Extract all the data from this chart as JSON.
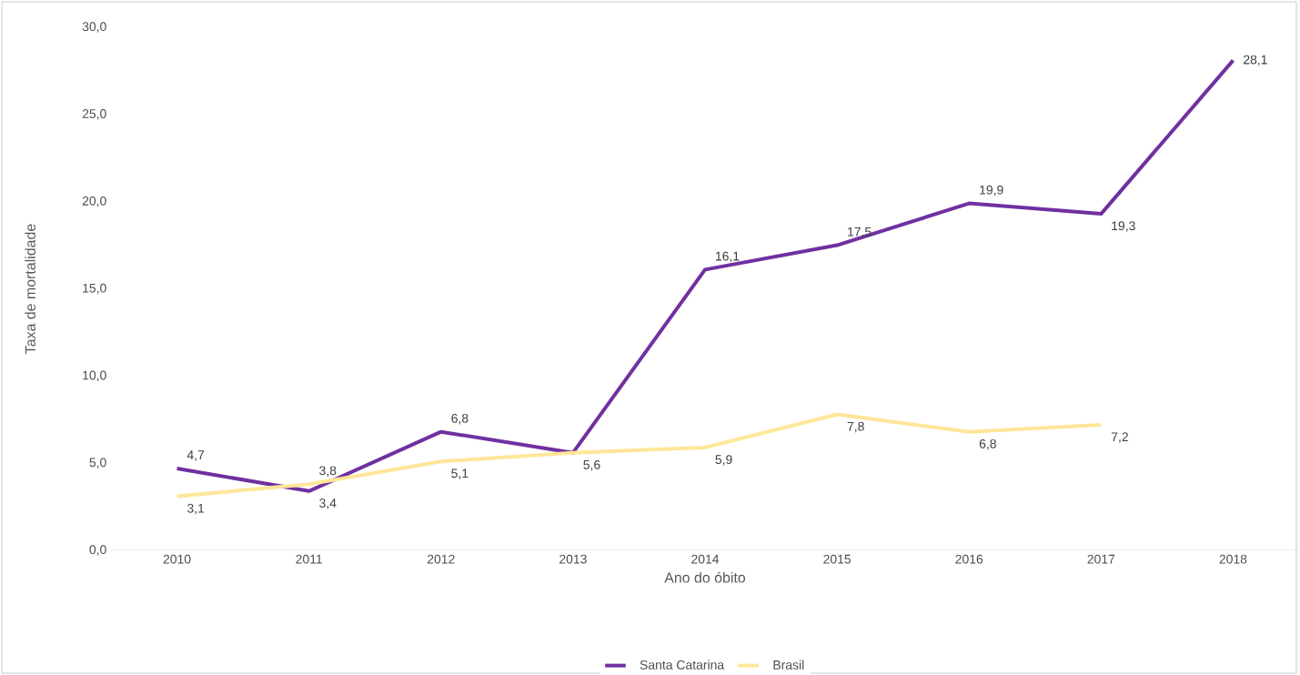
{
  "chart_data": {
    "type": "line",
    "xlabel": "Ano do óbito",
    "ylabel": "Taxa de mortalidade",
    "categories": [
      "2010",
      "2011",
      "2012",
      "2013",
      "2014",
      "2015",
      "2016",
      "2017",
      "2018"
    ],
    "series": [
      {
        "name": "Santa Catarina",
        "color": "#7030a0",
        "values": [
          4.7,
          3.4,
          6.8,
          5.6,
          16.1,
          17.5,
          19.9,
          19.3,
          28.1
        ],
        "value_labels": [
          "4,7",
          "3,4",
          "6,8",
          "5,6",
          "16,1",
          "17,5",
          "19,9",
          "19,3",
          "28,1"
        ]
      },
      {
        "name": "Brasil",
        "color": "#ffe699",
        "values": [
          3.1,
          3.8,
          5.1,
          5.6,
          5.9,
          7.8,
          6.8,
          7.2,
          null
        ],
        "value_labels": [
          "3,1",
          "3,8",
          "5,1",
          null,
          "5,9",
          "7,8",
          "6,8",
          "7,2",
          null
        ]
      }
    ],
    "ylim": [
      0,
      30
    ],
    "yticks": [
      {
        "value": 0,
        "label": "0,0"
      },
      {
        "value": 5,
        "label": "5,0"
      },
      {
        "value": 10,
        "label": "10,0"
      },
      {
        "value": 15,
        "label": "15,0"
      },
      {
        "value": 20,
        "label": "20,0"
      },
      {
        "value": 25,
        "label": "25,0"
      },
      {
        "value": 30,
        "label": "30,0"
      }
    ],
    "grid": false,
    "legend": "bottom",
    "marker": "none",
    "line_style": "solid"
  }
}
